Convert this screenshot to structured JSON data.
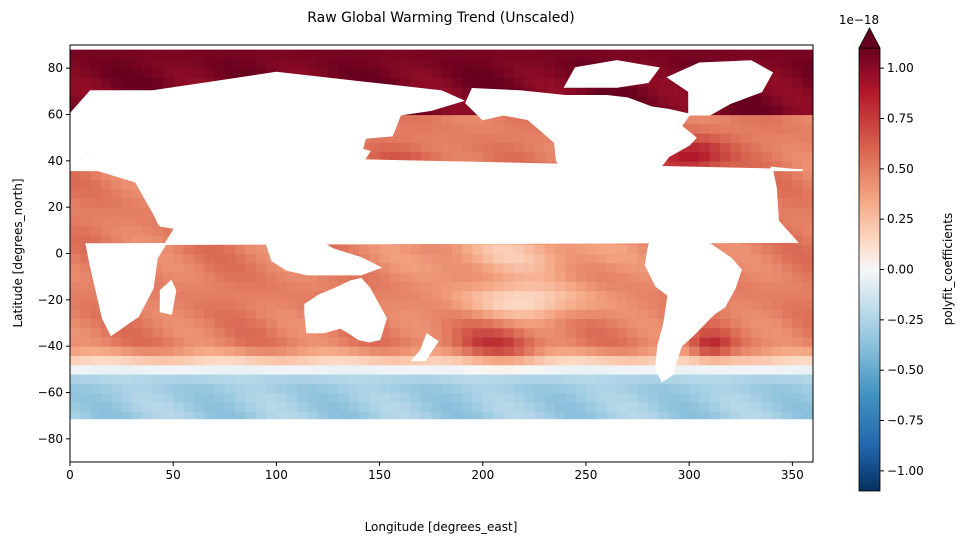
{
  "chart_data": {
    "type": "heatmap",
    "title": "Raw Global Warming Trend (Unscaled)",
    "xlabel": "Longitude [degrees_east]",
    "ylabel": "Latitude [degrees_north]",
    "xlim": [
      0,
      360
    ],
    "ylim": [
      -90,
      90
    ],
    "x_ticks": [
      "0",
      "50",
      "100",
      "150",
      "200",
      "250",
      "300",
      "350"
    ],
    "y_ticks": [
      "80",
      "60",
      "40",
      "20",
      "0",
      "−20",
      "−40",
      "−60",
      "−80"
    ],
    "colorbar": {
      "label": "polyfit_coefficients",
      "multiplier": "1e−18",
      "range": [
        -1.1,
        1.1
      ],
      "extend": "max",
      "colormap": "RdBu_r",
      "ticks": [
        "1.00",
        "0.75",
        "0.50",
        "0.25",
        "0.00",
        "−0.25",
        "−0.50",
        "−0.75",
        "−1.00"
      ]
    },
    "data_extent": {
      "lat_min": -72,
      "lat_max": 88
    },
    "land_color": "#ffffff",
    "ocean_value_pattern": {
      "arctic_and_north_atlantic_high": 1.05,
      "midlatitude_pacific": 0.55,
      "equatorial_pacific": 0.2,
      "southern_ocean_low": -0.3
    }
  }
}
